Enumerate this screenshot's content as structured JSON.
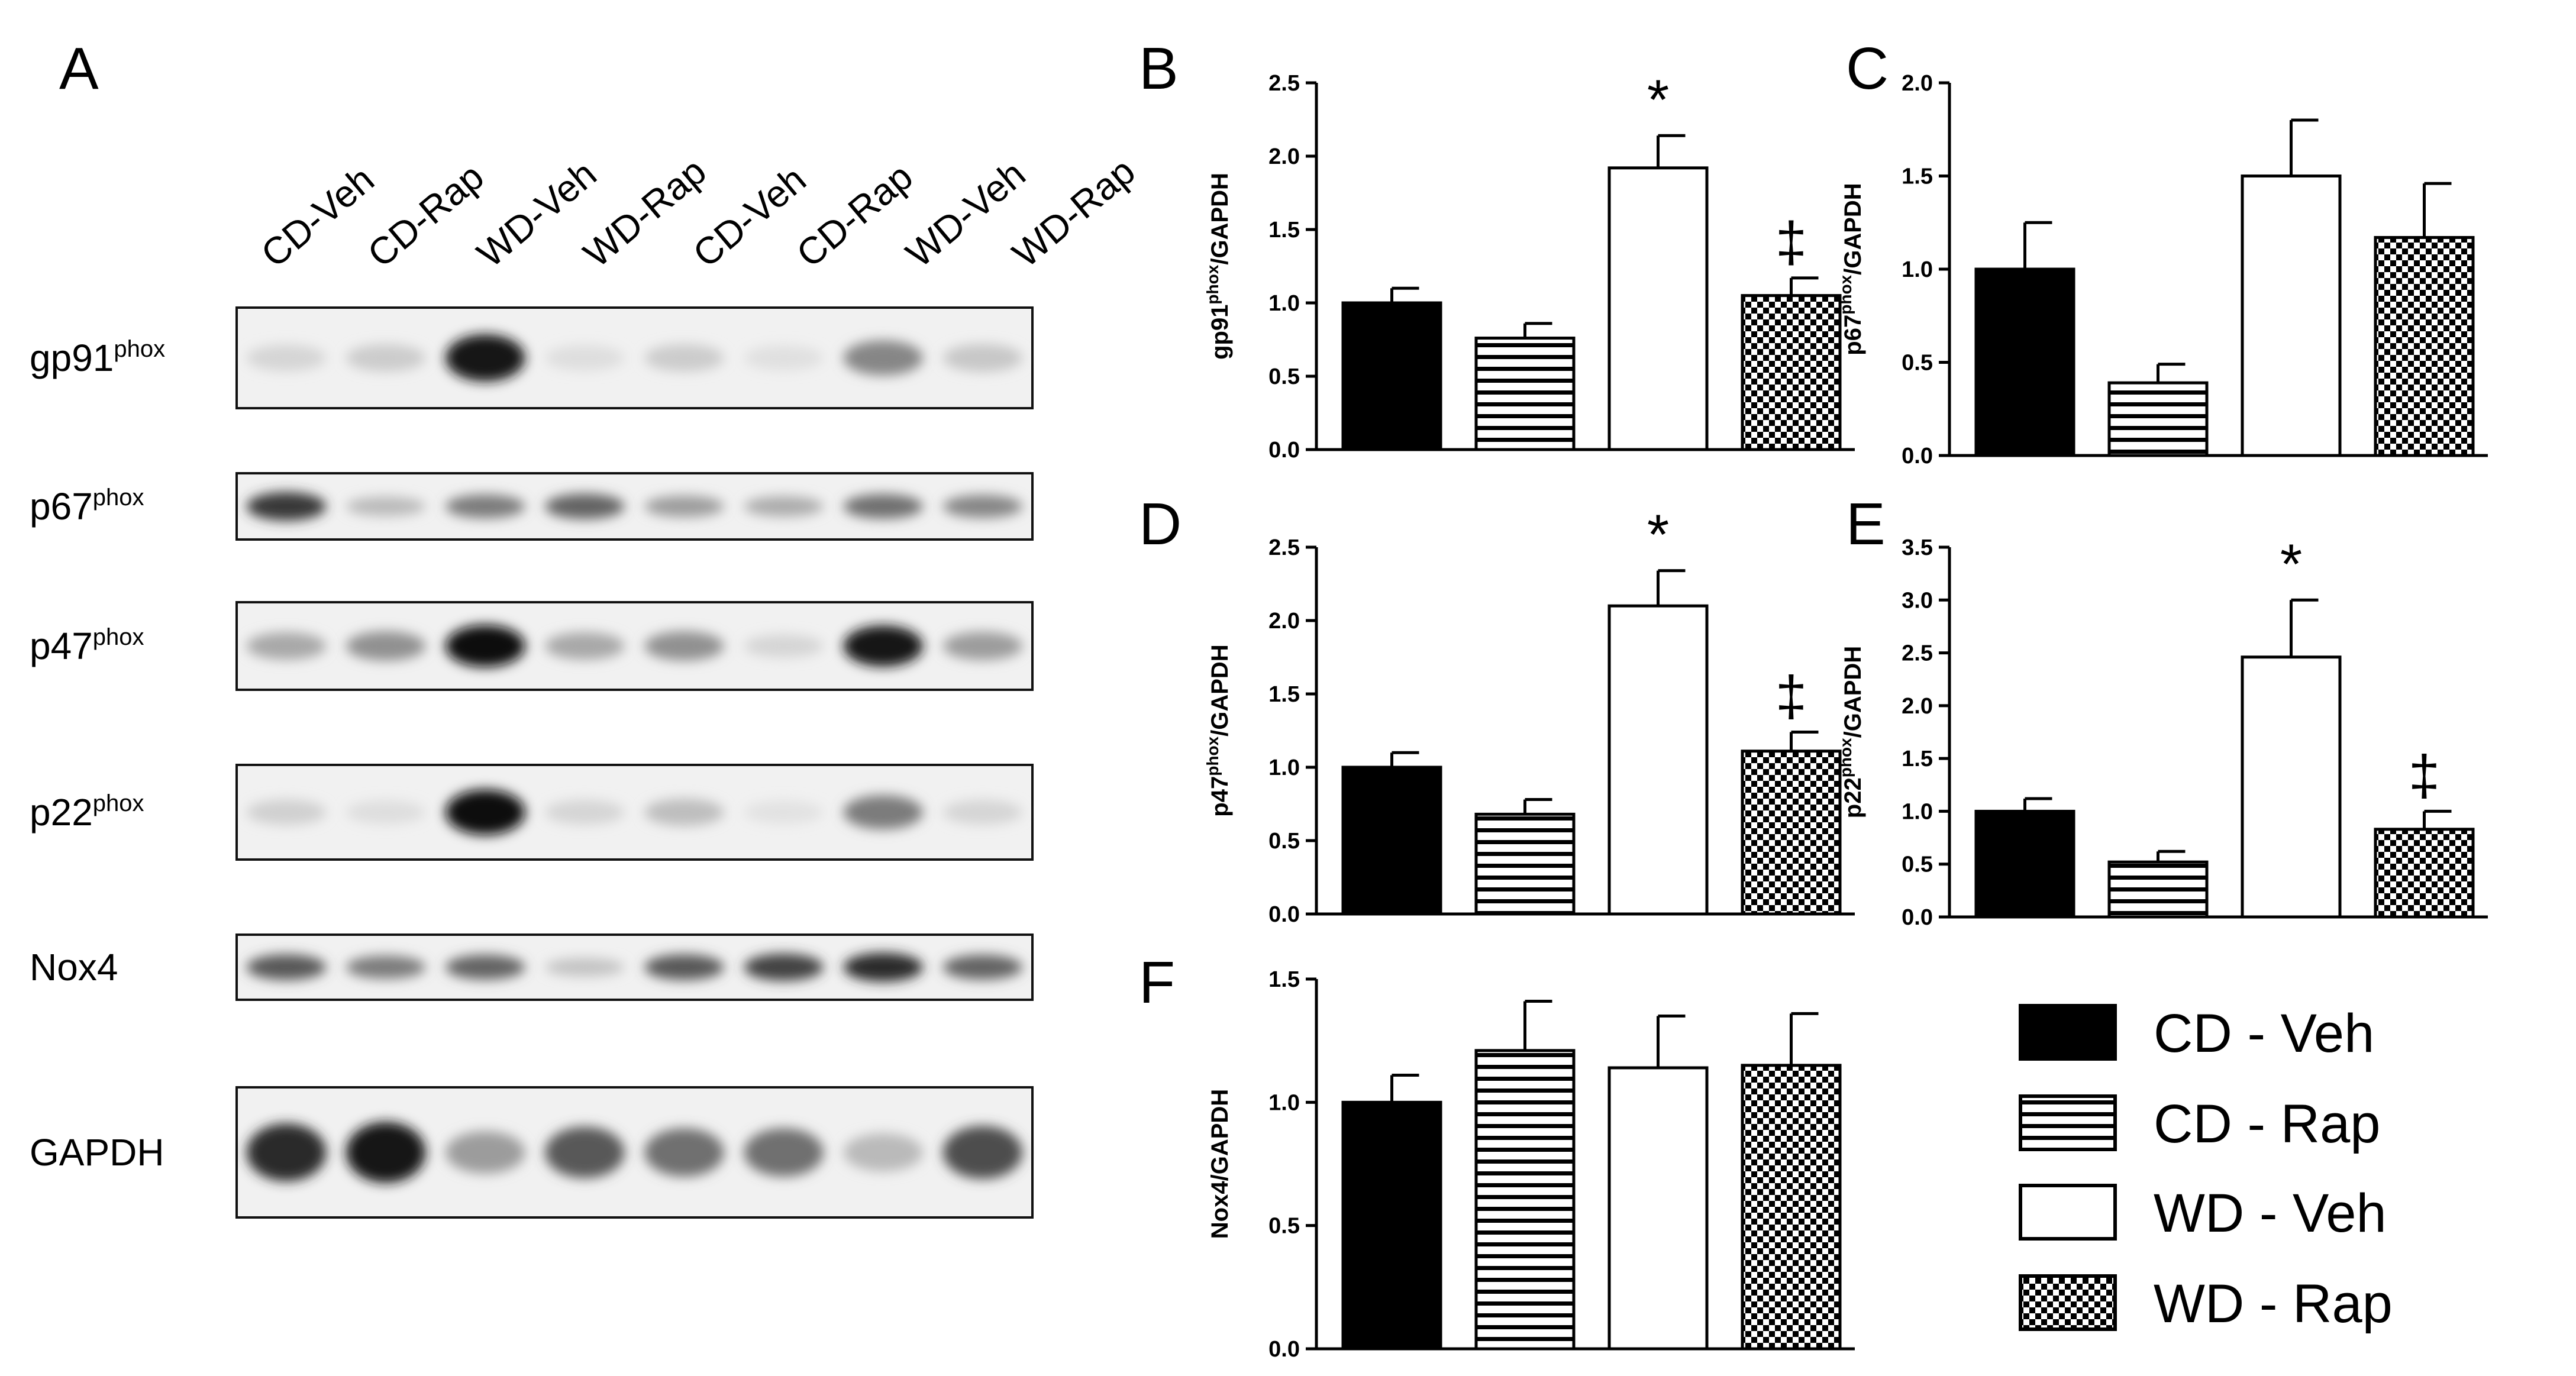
{
  "figure": {
    "panel_a": {
      "letter": "A",
      "lanes": [
        "CD-Veh",
        "CD-Rap",
        "WD-Veh",
        "WD-Rap",
        "CD-Veh",
        "CD-Rap",
        "WD-Veh",
        "WD-Rap"
      ],
      "blots": [
        {
          "label": "gp91",
          "sup": "phox",
          "intensities": [
            0.1,
            0.14,
            0.95,
            0.06,
            0.14,
            0.05,
            0.45,
            0.16
          ]
        },
        {
          "label": "p67",
          "sup": "phox",
          "intensities": [
            0.8,
            0.22,
            0.5,
            0.6,
            0.35,
            0.28,
            0.55,
            0.45
          ]
        },
        {
          "label": "p47",
          "sup": "phox",
          "intensities": [
            0.3,
            0.4,
            1.0,
            0.3,
            0.4,
            0.1,
            0.95,
            0.35
          ]
        },
        {
          "label": "p22",
          "sup": "phox",
          "intensities": [
            0.12,
            0.06,
            1.0,
            0.1,
            0.2,
            0.04,
            0.5,
            0.1
          ]
        },
        {
          "label": "Nox4",
          "sup": "",
          "intensities": [
            0.65,
            0.5,
            0.6,
            0.18,
            0.65,
            0.75,
            0.85,
            0.6
          ]
        },
        {
          "label": "GAPDH",
          "sup": "",
          "intensities": [
            0.85,
            0.95,
            0.35,
            0.65,
            0.55,
            0.55,
            0.22,
            0.7
          ]
        }
      ]
    },
    "legend": {
      "items": [
        {
          "label": "CD - Veh",
          "pattern": "solid-black"
        },
        {
          "label": "CD - Rap",
          "pattern": "horizontal-stripes"
        },
        {
          "label": "WD - Veh",
          "pattern": "white"
        },
        {
          "label": "WD - Rap",
          "pattern": "checkered"
        }
      ]
    }
  },
  "chart_data": [
    {
      "panel": "B",
      "type": "bar",
      "ylabel": "gp91",
      "ylabel_sup": "phox",
      "ylabel_suffix": "/GAPDH",
      "categories": [
        "CD - Veh",
        "CD - Rap",
        "WD - Veh",
        "WD - Rap"
      ],
      "values": [
        1.0,
        0.76,
        1.92,
        1.05
      ],
      "errors": [
        0.1,
        0.1,
        0.22,
        0.12
      ],
      "annotations": [
        "",
        "",
        "*",
        "‡"
      ],
      "ylim": [
        0,
        2.5
      ],
      "ticks": [
        "0.0",
        "0.5",
        "1.0",
        "1.5",
        "2.0",
        "2.5"
      ]
    },
    {
      "panel": "C",
      "type": "bar",
      "ylabel": "p67",
      "ylabel_sup": "phox",
      "ylabel_suffix": "/GAPDH",
      "categories": [
        "CD - Veh",
        "CD - Rap",
        "WD - Veh",
        "WD - Rap"
      ],
      "values": [
        1.0,
        0.39,
        1.5,
        1.17
      ],
      "errors": [
        0.25,
        0.1,
        0.3,
        0.29
      ],
      "annotations": [
        "",
        "",
        "",
        ""
      ],
      "ylim": [
        0,
        2.0
      ],
      "ticks": [
        "0.0",
        "0.5",
        "1.0",
        "1.5",
        "2.0"
      ]
    },
    {
      "panel": "D",
      "type": "bar",
      "ylabel": "p47",
      "ylabel_sup": "phox",
      "ylabel_suffix": "/GAPDH",
      "categories": [
        "CD - Veh",
        "CD - Rap",
        "WD - Veh",
        "WD - Rap"
      ],
      "values": [
        1.0,
        0.68,
        2.1,
        1.11
      ],
      "errors": [
        0.1,
        0.1,
        0.24,
        0.13
      ],
      "annotations": [
        "",
        "",
        "*",
        "‡"
      ],
      "ylim": [
        0,
        2.5
      ],
      "ticks": [
        "0.0",
        "0.5",
        "1.0",
        "1.5",
        "2.0",
        "2.5"
      ]
    },
    {
      "panel": "E",
      "type": "bar",
      "ylabel": "p22",
      "ylabel_sup": "phox",
      "ylabel_suffix": "/GAPDH",
      "categories": [
        "CD - Veh",
        "CD - Rap",
        "WD - Veh",
        "WD - Rap"
      ],
      "values": [
        1.0,
        0.52,
        2.46,
        0.83
      ],
      "errors": [
        0.12,
        0.1,
        0.54,
        0.17
      ],
      "annotations": [
        "",
        "",
        "*",
        "‡"
      ],
      "ylim": [
        0,
        3.5
      ],
      "ticks": [
        "0.0",
        "0.5",
        "1.0",
        "1.5",
        "2.0",
        "2.5",
        "3.0",
        "3.5"
      ]
    },
    {
      "panel": "F",
      "type": "bar",
      "ylabel": "Nox4/GAPDH",
      "ylabel_sup": "",
      "ylabel_suffix": "",
      "categories": [
        "CD - Veh",
        "CD - Rap",
        "WD - Veh",
        "WD - Rap"
      ],
      "values": [
        1.0,
        1.21,
        1.14,
        1.15
      ],
      "errors": [
        0.11,
        0.2,
        0.21,
        0.21
      ],
      "annotations": [
        "",
        "",
        "",
        ""
      ],
      "ylim": [
        0,
        1.5
      ],
      "ticks": [
        "0.0",
        "0.5",
        "1.0",
        "1.5"
      ]
    }
  ]
}
